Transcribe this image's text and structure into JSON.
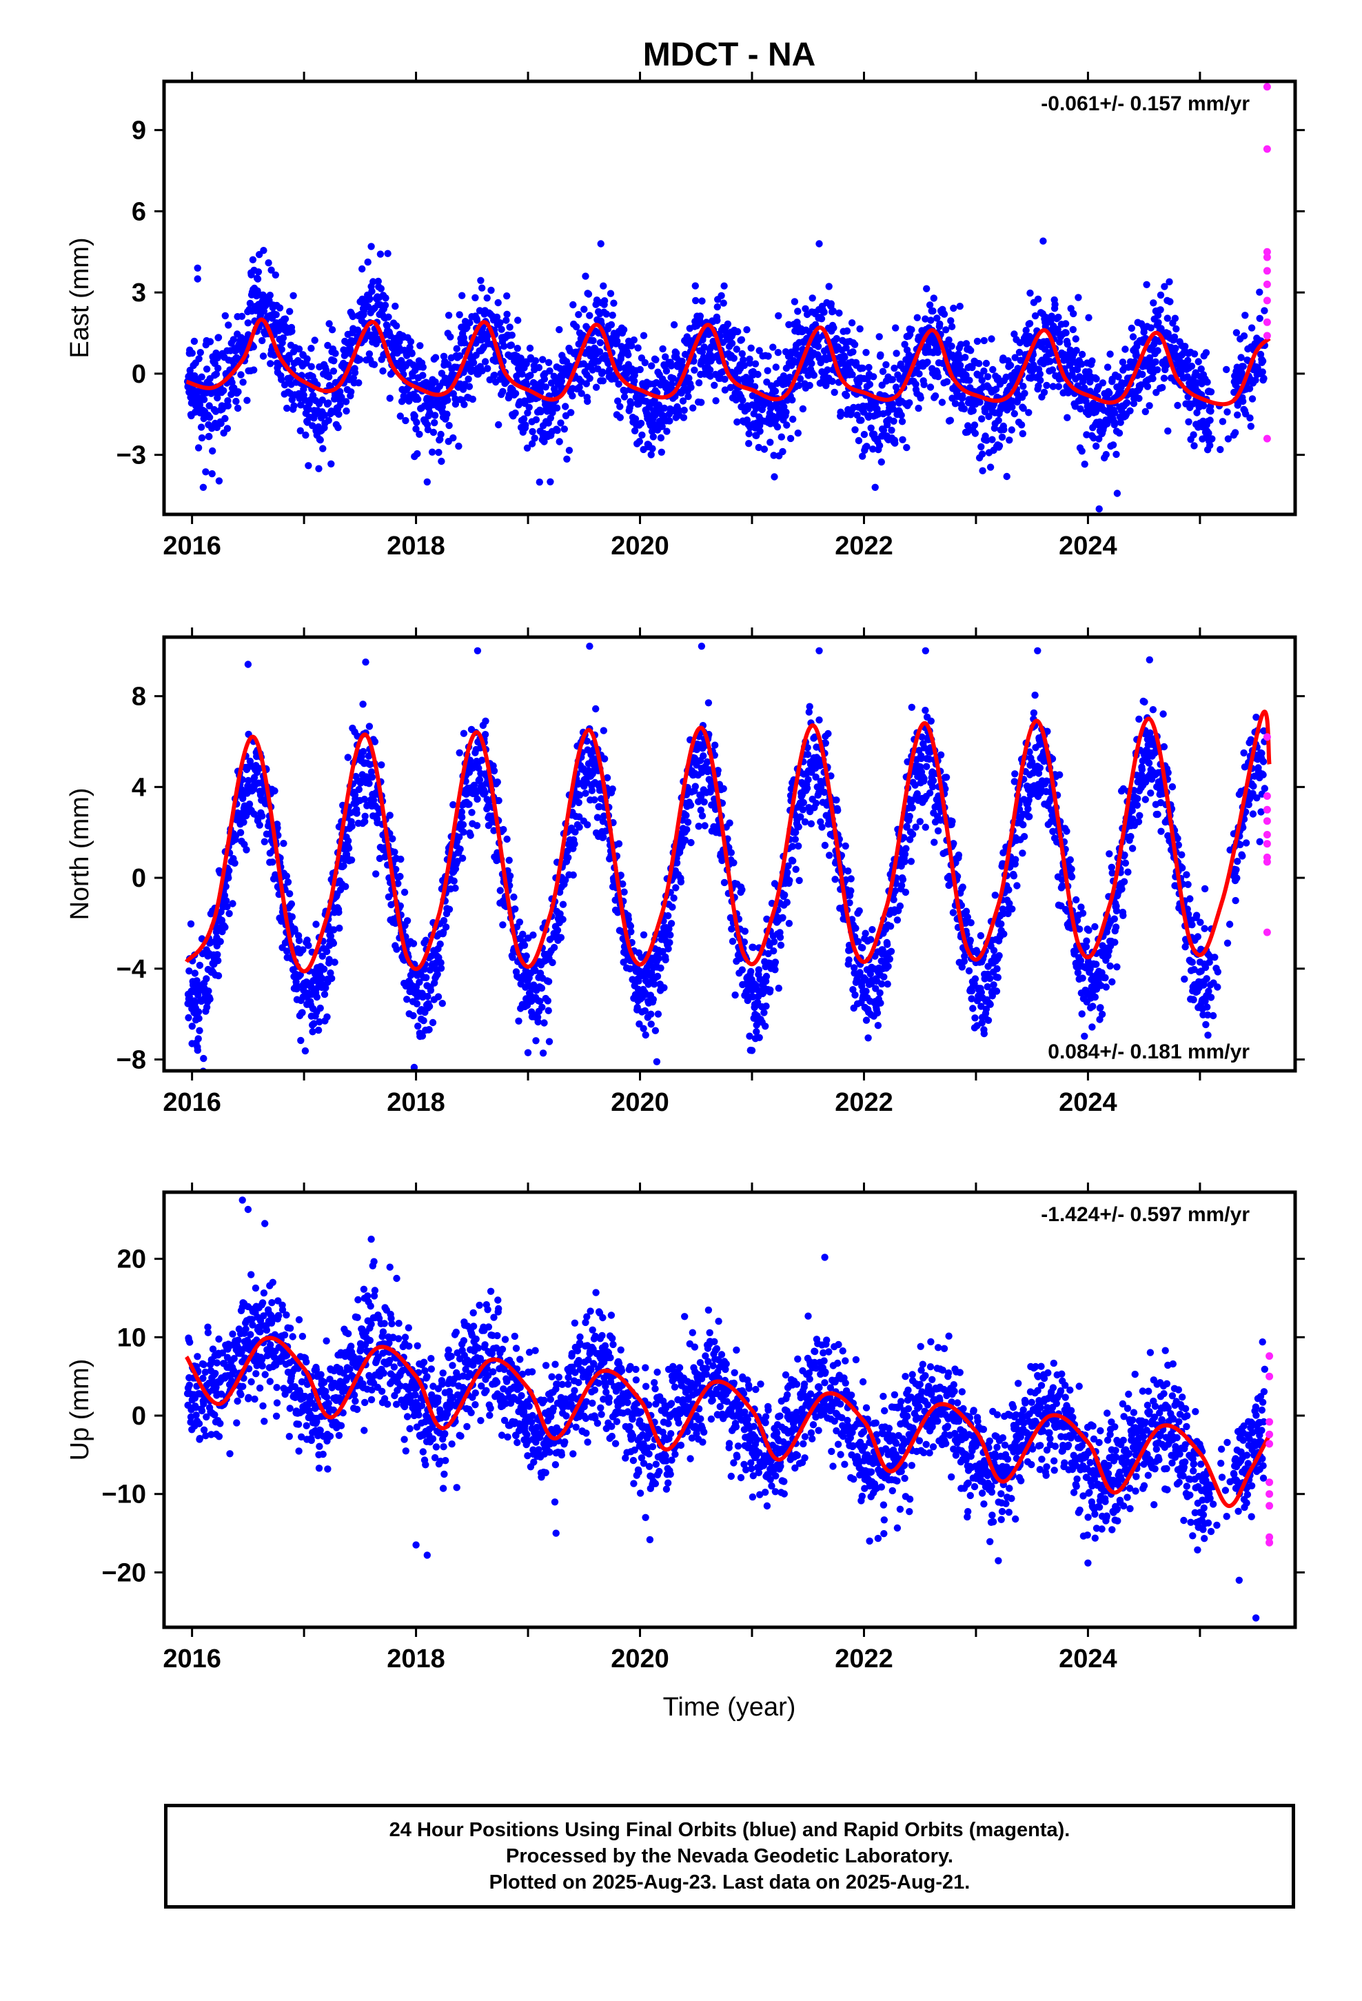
{
  "title": "MDCT - NA",
  "xlabel": "Time (year)",
  "colors": {
    "final_orbits": "#0000ff",
    "rapid_orbits": "#ff22ff",
    "model": "#ff0000",
    "axes": "#000000"
  },
  "caption": {
    "line1": "24 Hour Positions Using Final Orbits (blue) and Rapid Orbits (magenta).",
    "line2": "Processed by the Nevada Geodetic Laboratory.",
    "line3": "Plotted on 2025-Aug-23. Last data on 2025-Aug-21."
  },
  "chart_data": [
    {
      "type": "scatter",
      "panel": "East",
      "ylabel": "East (mm)",
      "rate_label": "-0.061+/- 0.157 mm/yr",
      "rate_position": "top-right",
      "xlim": [
        2015.75,
        2025.85
      ],
      "ylim": [
        -5.2,
        10.8
      ],
      "xticks": [
        2016,
        2018,
        2020,
        2022,
        2024
      ],
      "xtick_labels": [
        "2016",
        "2018",
        "2020",
        "2022",
        "2024"
      ],
      "yticks": [
        -3,
        0,
        3,
        6,
        9
      ],
      "ytick_labels": [
        "−3",
        "0",
        "3",
        "6",
        "9"
      ],
      "trend": {
        "rate": -0.061,
        "offset": 0.0
      },
      "seasonal": {
        "amp": 1.2,
        "peak_frac": 0.63,
        "noise": 0.95
      },
      "spline": {
        "x": [
          2015.95,
          2016.2,
          2016.45,
          2016.62,
          2016.8,
          2017.0,
          2017.3,
          2017.6,
          2017.8,
          2018.0,
          2018.3,
          2018.6,
          2018.8,
          2019.0,
          2019.3,
          2019.6,
          2019.8,
          2020.0,
          2020.3,
          2020.6,
          2020.8,
          2021.0,
          2021.3,
          2021.6,
          2021.8,
          2022.0,
          2022.3,
          2022.6,
          2022.8,
          2023.0,
          2023.3,
          2023.6,
          2023.8,
          2024.0,
          2024.3,
          2024.6,
          2024.8,
          2025.0,
          2025.3,
          2025.5,
          2025.62
        ],
        "y": [
          -0.3,
          -0.5,
          0.5,
          2.0,
          0.5,
          -0.3,
          -0.5,
          1.9,
          0.2,
          -0.5,
          -0.6,
          1.9,
          0.0,
          -0.6,
          -0.8,
          1.8,
          0.0,
          -0.6,
          -0.7,
          1.8,
          -0.1,
          -0.6,
          -0.8,
          1.7,
          -0.2,
          -0.7,
          -0.8,
          1.6,
          -0.2,
          -0.8,
          -0.8,
          1.6,
          -0.2,
          -0.8,
          -0.9,
          1.5,
          -0.2,
          -0.9,
          -1.0,
          0.8,
          1.3
        ]
      },
      "outliers": [
        [
          2016.05,
          3.9
        ],
        [
          2016.05,
          3.5
        ],
        [
          2016.1,
          -4.2
        ],
        [
          2016.6,
          4.4
        ],
        [
          2017.6,
          4.7
        ],
        [
          2019.65,
          4.8
        ],
        [
          2021.6,
          4.8
        ],
        [
          2023.6,
          4.9
        ],
        [
          2024.1,
          -5.0
        ],
        [
          2022.1,
          -4.2
        ],
        [
          2018.1,
          -4.0
        ]
      ],
      "rapid": [
        [
          2025.6,
          10.6
        ],
        [
          2025.6,
          8.3
        ],
        [
          2025.6,
          4.5
        ],
        [
          2025.6,
          4.3
        ],
        [
          2025.6,
          3.8
        ],
        [
          2025.6,
          3.3
        ],
        [
          2025.6,
          2.7
        ],
        [
          2025.6,
          1.9
        ],
        [
          2025.6,
          1.4
        ],
        [
          2025.6,
          -2.4
        ]
      ]
    },
    {
      "type": "scatter",
      "panel": "North",
      "ylabel": "North (mm)",
      "rate_label": "0.084+/- 0.181 mm/yr",
      "rate_position": "bottom-right",
      "xlim": [
        2015.75,
        2025.85
      ],
      "ylim": [
        -8.5,
        10.6
      ],
      "xticks": [
        2016,
        2018,
        2020,
        2022,
        2024
      ],
      "xtick_labels": [
        "2016",
        "2018",
        "2020",
        "2022",
        "2024"
      ],
      "yticks": [
        -8,
        -4,
        0,
        4,
        8
      ],
      "ytick_labels": [
        "−8",
        "−4",
        "0",
        "4",
        "8"
      ],
      "trend": {
        "rate": 0.084,
        "offset": 0.0
      },
      "seasonal": {
        "amp": 4.9,
        "peak_frac": 0.55,
        "noise": 1.15
      },
      "spline": {
        "x": [
          2015.95,
          2016.2,
          2016.55,
          2016.92,
          2017.2,
          2017.55,
          2017.92,
          2018.2,
          2018.55,
          2018.92,
          2019.2,
          2019.55,
          2019.92,
          2020.2,
          2020.55,
          2020.92,
          2021.2,
          2021.55,
          2021.92,
          2022.2,
          2022.55,
          2022.92,
          2023.2,
          2023.55,
          2023.92,
          2024.2,
          2024.55,
          2024.92,
          2025.2,
          2025.55,
          2025.62
        ],
        "y": [
          -3.7,
          -1.8,
          6.2,
          -3.6,
          -1.8,
          6.3,
          -3.5,
          -1.7,
          6.4,
          -3.4,
          -1.6,
          6.5,
          -3.3,
          -1.5,
          6.6,
          -3.3,
          -1.4,
          6.7,
          -3.2,
          -1.3,
          6.8,
          -3.1,
          -1.2,
          6.9,
          -3.0,
          -1.1,
          7.0,
          -2.9,
          -1.0,
          7.1,
          5.0
        ]
      },
      "outliers": [
        [
          2016.0,
          -7.3
        ],
        [
          2016.5,
          9.4
        ],
        [
          2017.55,
          9.5
        ],
        [
          2018.55,
          10.0
        ],
        [
          2019.55,
          10.2
        ],
        [
          2020.55,
          10.2
        ],
        [
          2021.6,
          10.0
        ],
        [
          2022.55,
          10.0
        ],
        [
          2023.55,
          10.0
        ],
        [
          2024.55,
          9.6
        ],
        [
          2020.15,
          -8.1
        ],
        [
          2019.0,
          -7.7
        ],
        [
          2021.0,
          -7.6
        ]
      ],
      "rapid": [
        [
          2025.6,
          6.2
        ],
        [
          2025.6,
          3.6
        ],
        [
          2025.6,
          3.0
        ],
        [
          2025.6,
          2.5
        ],
        [
          2025.6,
          1.9
        ],
        [
          2025.6,
          1.5
        ],
        [
          2025.6,
          0.9
        ],
        [
          2025.6,
          0.7
        ],
        [
          2025.6,
          -2.4
        ]
      ]
    },
    {
      "type": "scatter",
      "panel": "Up",
      "ylabel": "Up (mm)",
      "rate_label": "-1.424+/- 0.597 mm/yr",
      "rate_position": "top-right",
      "xlim": [
        2015.75,
        2025.85
      ],
      "ylim": [
        -27,
        28.5
      ],
      "xticks": [
        2016,
        2018,
        2020,
        2022,
        2024
      ],
      "xtick_labels": [
        "2016",
        "2018",
        "2020",
        "2022",
        "2024"
      ],
      "yticks": [
        -20,
        -10,
        0,
        10,
        20
      ],
      "ytick_labels": [
        "−20",
        "−10",
        "0",
        "10",
        "20"
      ],
      "trend": {
        "rate": -1.424,
        "offset": 7.0
      },
      "seasonal": {
        "amp": 4.2,
        "peak_frac": 0.63,
        "noise": 3.6
      },
      "spline": {
        "x": [
          2015.95,
          2016.25,
          2016.65,
          2017.0,
          2017.25,
          2017.65,
          2018.0,
          2018.25,
          2018.65,
          2019.0,
          2019.25,
          2019.65,
          2020.0,
          2020.25,
          2020.65,
          2021.0,
          2021.25,
          2021.65,
          2022.0,
          2022.25,
          2022.65,
          2023.0,
          2023.25,
          2023.65,
          2024.0,
          2024.25,
          2024.65,
          2025.0,
          2025.25,
          2025.45,
          2025.62
        ],
        "y": [
          7.5,
          1.5,
          9.8,
          6.0,
          -0.2,
          8.6,
          5.0,
          -1.6,
          7.0,
          3.5,
          -2.9,
          5.6,
          2.0,
          -4.3,
          4.2,
          0.7,
          -5.6,
          2.7,
          -0.7,
          -7.1,
          1.3,
          -2.0,
          -8.4,
          -0.1,
          -3.4,
          -9.8,
          -1.4,
          -4.8,
          -11.5,
          -7.0,
          -2.5
        ]
      },
      "outliers": [
        [
          2016.45,
          27.5
        ],
        [
          2016.5,
          26.3
        ],
        [
          2016.65,
          24.5
        ],
        [
          2017.6,
          22.5
        ],
        [
          2021.65,
          20.2
        ],
        [
          2018.0,
          -16.5
        ],
        [
          2018.1,
          -17.8
        ],
        [
          2019.25,
          -15.0
        ],
        [
          2020.05,
          -13.0
        ],
        [
          2022.05,
          -16.0
        ],
        [
          2023.2,
          -18.5
        ],
        [
          2024.0,
          -18.8
        ],
        [
          2025.35,
          -21.0
        ],
        [
          2025.5,
          -25.8
        ]
      ],
      "rapid": [
        [
          2025.62,
          7.6
        ],
        [
          2025.62,
          5.0
        ],
        [
          2025.62,
          -0.8
        ],
        [
          2025.62,
          -2.4
        ],
        [
          2025.62,
          -3.6
        ],
        [
          2025.62,
          -8.5
        ],
        [
          2025.62,
          -10.0
        ],
        [
          2025.62,
          -11.5
        ],
        [
          2025.62,
          -15.5
        ],
        [
          2025.62,
          -16.2
        ]
      ]
    }
  ]
}
